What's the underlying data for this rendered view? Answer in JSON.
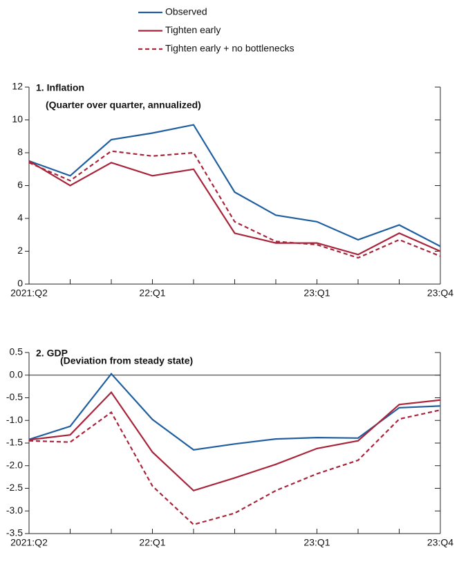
{
  "chart_data": [
    {
      "type": "line",
      "title": "1. Inflation",
      "subtitle": "(Quarter over quarter, annualized)",
      "categories": [
        "2021:Q2",
        null,
        null,
        "22:Q1",
        null,
        null,
        null,
        "23:Q1",
        null,
        null,
        "23:Q4"
      ],
      "ylim": [
        0,
        12
      ],
      "yticks": [
        0,
        2,
        4,
        6,
        8,
        10,
        12
      ],
      "series": [
        {
          "name": "Observed",
          "color": "#1f5fa0",
          "dash": false,
          "values": [
            7.5,
            6.6,
            8.8,
            9.2,
            9.7,
            5.6,
            4.2,
            3.8,
            2.7,
            3.6,
            2.3
          ]
        },
        {
          "name": "Tighten early",
          "color": "#a8243a",
          "dash": false,
          "values": [
            7.5,
            6.0,
            7.4,
            6.6,
            7.0,
            3.1,
            2.5,
            2.5,
            1.8,
            3.1,
            2.0
          ]
        },
        {
          "name": "Tighten early + no bottlenecks",
          "color": "#a8243a",
          "dash": true,
          "values": [
            7.4,
            6.3,
            8.1,
            7.8,
            8.0,
            3.8,
            2.6,
            2.4,
            1.6,
            2.7,
            1.7
          ]
        }
      ]
    },
    {
      "type": "line",
      "title": "2. GDP",
      "subtitle": "(Deviation from steady state)",
      "categories": [
        "2021:Q2",
        null,
        null,
        "22:Q1",
        null,
        null,
        null,
        "23:Q1",
        null,
        null,
        "23:Q4"
      ],
      "ylim": [
        -3.5,
        0.5
      ],
      "yticks": [
        {
          "value": -3.5,
          "label": "-3.5"
        },
        {
          "value": -3,
          "label": "-3.0"
        },
        -2.5,
        {
          "value": -2,
          "label": "-2.0"
        },
        -1.5,
        {
          "value": -1,
          "label": "-1.0"
        },
        -0.5,
        {
          "value": 0,
          "label": "0.0"
        },
        0.5
      ],
      "series": [
        {
          "color": "#1f5fa0",
          "dash": false,
          "values": [
            -1.42,
            -1.13,
            0.03,
            -0.98,
            -1.65,
            -1.52,
            -1.41,
            -1.38,
            -1.39,
            -0.72,
            -0.68
          ]
        },
        {
          "color": "#a8243a",
          "dash": false,
          "values": [
            -1.43,
            -1.32,
            -0.38,
            -1.7,
            -2.55,
            -2.27,
            -1.97,
            -1.62,
            -1.45,
            -0.65,
            -0.55
          ]
        },
        {
          "color": "#a8243a",
          "dash": true,
          "values": [
            -1.45,
            -1.48,
            -0.82,
            -2.45,
            -3.3,
            -3.05,
            -2.55,
            -2.18,
            -1.88,
            -0.97,
            -0.77
          ]
        }
      ]
    }
  ]
}
